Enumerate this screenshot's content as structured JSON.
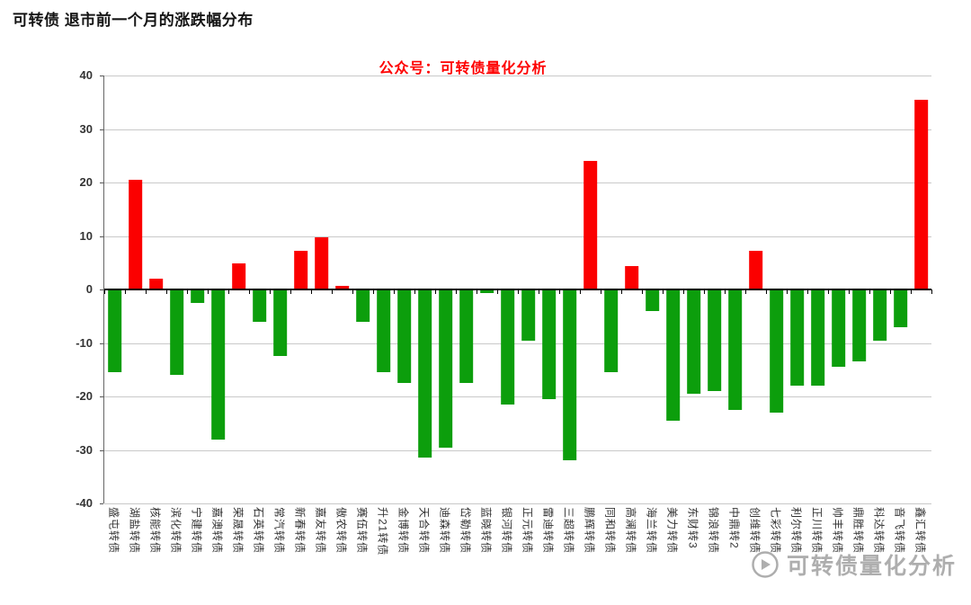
{
  "page": {
    "title": "可转债 退市前一个月的涨跌幅分布"
  },
  "chart_data": {
    "type": "bar",
    "title": "公众号：可转债量化分析",
    "xlabel": "",
    "ylabel": "",
    "ylim": [
      -40,
      40
    ],
    "yticks": [
      40,
      30,
      20,
      10,
      0,
      -10,
      -20,
      -30,
      -40
    ],
    "grid": true,
    "colors": {
      "positive": "#fb0000",
      "negative": "#0c9e0c",
      "gridline": "#c9c9c9",
      "zero_line": "#000000",
      "title": "#fe0000"
    },
    "categories": [
      "盛屯转债",
      "湖盐转债",
      "核能转债",
      "滨化转债",
      "宁建转债",
      "嘉澳转债",
      "荣晟转债",
      "石英转债",
      "常汽转债",
      "新春转债",
      "嘉友转债",
      "傲农转债",
      "赛伍转债",
      "升21转债",
      "金博转债",
      "天合转债",
      "迪森转债",
      "岱勒转债",
      "蓝晓转债",
      "银河转债",
      "正元转债",
      "雷迪转债",
      "三超转债",
      "鹏辉转债",
      "同和转债",
      "高澜转债",
      "海兰转债",
      "美力转债",
      "东财转3",
      "锦浪转债",
      "中鼎转2",
      "创维转债",
      "七彩转债",
      "利尔转债",
      "正川转债",
      "帅丰转债",
      "鼎胜转债",
      "科达转债",
      "音飞转债",
      "鑫汇转债"
    ],
    "values": [
      -15.5,
      20.5,
      2.1,
      -16,
      -2.5,
      -28,
      4.8,
      -6,
      -12.5,
      7.2,
      9.8,
      0.6,
      -6,
      -15.5,
      -17.5,
      -31.5,
      -29.5,
      -17.5,
      -0.7,
      -21.5,
      -9.5,
      -20.5,
      -32,
      24,
      -15.5,
      4.4,
      -4,
      -24.5,
      -19.5,
      -19,
      -22.5,
      7.2,
      -23,
      -18,
      -18,
      -14.5,
      -13.5,
      -9.5,
      -7,
      35.5
    ]
  },
  "watermark": {
    "text": "可转债量化分析",
    "logo": "wechat-official-account-logo"
  }
}
